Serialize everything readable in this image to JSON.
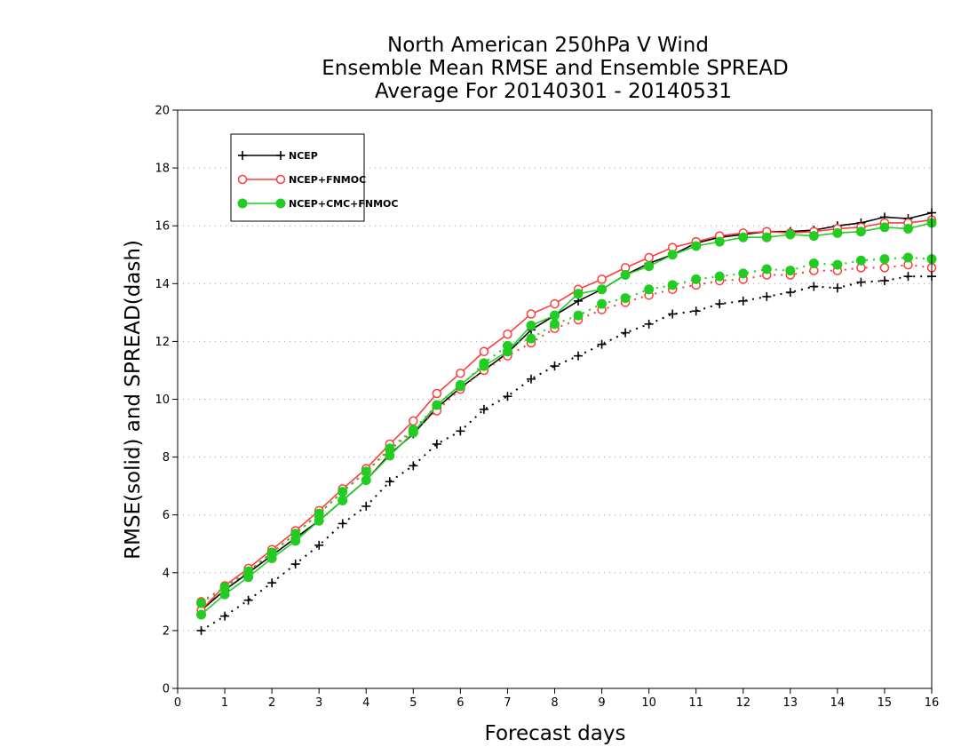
{
  "chart_data": {
    "type": "line",
    "title": [
      "North American 250hPa V Wind",
      "Ensemble Mean RMSE and Ensemble SPREAD",
      "Average For 20140301 - 20140531"
    ],
    "xlabel": "Forecast days",
    "ylabel": "RMSE(solid) and SPREAD(dash)",
    "xlim": [
      0,
      16
    ],
    "ylim": [
      0,
      20
    ],
    "xticks": [
      0,
      1,
      2,
      3,
      4,
      5,
      6,
      7,
      8,
      9,
      10,
      11,
      12,
      13,
      14,
      15,
      16
    ],
    "yticks": [
      0,
      2,
      4,
      6,
      8,
      10,
      12,
      14,
      16,
      18,
      20
    ],
    "grid": "horizontal dotted",
    "legend_position": "top-left",
    "x": [
      0.5,
      1,
      1.5,
      2,
      2.5,
      3,
      3.5,
      4,
      4.5,
      5,
      5.5,
      6,
      6.5,
      7,
      7.5,
      8,
      8.5,
      9,
      9.5,
      10,
      10.5,
      11,
      11.5,
      12,
      12.5,
      13,
      13.5,
      14,
      14.5,
      15,
      15.5,
      16
    ],
    "series": [
      {
        "name": "NCEP",
        "color": "#000000",
        "marker": "plus",
        "rmse": [
          2.7,
          3.4,
          4.0,
          4.6,
          5.2,
          5.8,
          6.5,
          7.2,
          8.1,
          8.8,
          9.7,
          10.4,
          11.0,
          11.6,
          12.4,
          12.9,
          13.4,
          13.8,
          14.3,
          14.7,
          15.0,
          15.4,
          15.6,
          15.7,
          15.8,
          15.8,
          15.85,
          16.0,
          16.1,
          16.3,
          16.25,
          16.45
        ],
        "spread": [
          2.0,
          2.5,
          3.05,
          3.65,
          4.3,
          4.95,
          5.7,
          6.3,
          7.15,
          7.7,
          8.45,
          8.9,
          9.65,
          10.1,
          10.7,
          11.15,
          11.5,
          11.9,
          12.3,
          12.6,
          12.95,
          13.05,
          13.3,
          13.4,
          13.55,
          13.7,
          13.9,
          13.85,
          14.05,
          14.1,
          14.25,
          14.25
        ]
      },
      {
        "name": "NCEP+FNMOC",
        "color": "#ff3b3b",
        "marker": "open-circle",
        "rmse": [
          2.7,
          3.55,
          4.15,
          4.8,
          5.45,
          6.15,
          6.9,
          7.6,
          8.45,
          9.25,
          10.2,
          10.9,
          11.65,
          12.25,
          12.95,
          13.3,
          13.8,
          14.15,
          14.55,
          14.9,
          15.25,
          15.45,
          15.65,
          15.75,
          15.8,
          15.75,
          15.8,
          15.9,
          15.95,
          16.1,
          16.1,
          16.2
        ],
        "spread": [
          3.0,
          3.5,
          4.05,
          4.7,
          5.35,
          6.05,
          6.8,
          7.5,
          8.25,
          8.9,
          9.6,
          10.35,
          11.0,
          11.5,
          11.95,
          12.45,
          12.75,
          13.1,
          13.35,
          13.6,
          13.8,
          13.95,
          14.1,
          14.15,
          14.3,
          14.3,
          14.45,
          14.45,
          14.55,
          14.55,
          14.65,
          14.55
        ]
      },
      {
        "name": "NCEP+CMC+FNMOC",
        "color": "#22cc22",
        "marker": "filled-circle",
        "rmse": [
          2.55,
          3.25,
          3.85,
          4.5,
          5.1,
          5.8,
          6.5,
          7.2,
          8.05,
          8.85,
          9.8,
          10.5,
          11.15,
          11.65,
          12.55,
          12.9,
          13.65,
          13.8,
          14.3,
          14.6,
          15.0,
          15.3,
          15.45,
          15.6,
          15.6,
          15.7,
          15.65,
          15.75,
          15.8,
          15.95,
          15.9,
          16.1
        ],
        "spread": [
          2.95,
          3.5,
          4.05,
          4.7,
          5.35,
          6.05,
          6.8,
          7.5,
          8.3,
          8.95,
          9.8,
          10.45,
          11.25,
          11.85,
          12.1,
          12.6,
          12.9,
          13.3,
          13.5,
          13.8,
          13.95,
          14.15,
          14.25,
          14.35,
          14.5,
          14.45,
          14.7,
          14.65,
          14.8,
          14.85,
          14.9,
          14.85
        ]
      }
    ]
  }
}
